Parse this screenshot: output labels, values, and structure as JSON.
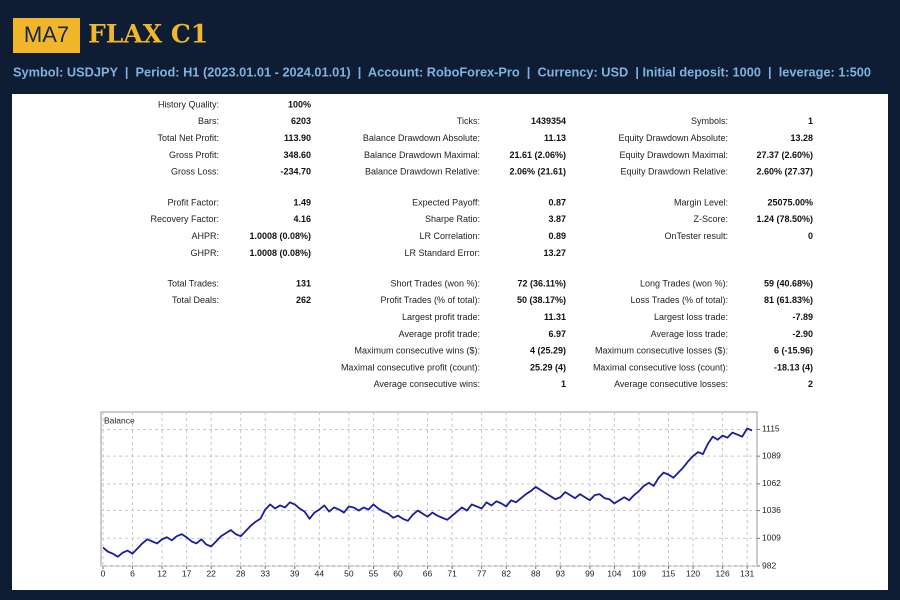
{
  "header": {
    "logo": "MA7",
    "title": "FLAX C1",
    "info": "Symbol: USDJPY  |  Period: H1 (2023.01.01 - 2024.01.01)  |  Account: RoboForex-Pro  |  Currency: USD  | Initial deposit: 1000  |  leverage: 1:500"
  },
  "report": {
    "groups": [
      [
        [
          {
            "label": "History Quality:",
            "value": "100%"
          },
          null,
          null
        ],
        [
          {
            "label": "Bars:",
            "value": "6203"
          },
          {
            "label": "Ticks:",
            "value": "1439354"
          },
          {
            "label": "Symbols:",
            "value": "1"
          }
        ],
        [
          {
            "label": "Total Net Profit:",
            "value": "113.90"
          },
          {
            "label": "Balance Drawdown Absolute:",
            "value": "11.13"
          },
          {
            "label": "Equity Drawdown Absolute:",
            "value": "13.28"
          }
        ],
        [
          {
            "label": "Gross Profit:",
            "value": "348.60"
          },
          {
            "label": "Balance Drawdown Maximal:",
            "value": "21.61 (2.06%)"
          },
          {
            "label": "Equity Drawdown Maximal:",
            "value": "27.37 (2.60%)"
          }
        ],
        [
          {
            "label": "Gross Loss:",
            "value": "-234.70"
          },
          {
            "label": "Balance Drawdown Relative:",
            "value": "2.06% (21.61)"
          },
          {
            "label": "Equity Drawdown Relative:",
            "value": "2.60% (27.37)"
          }
        ]
      ],
      [
        [
          {
            "label": "Profit Factor:",
            "value": "1.49"
          },
          {
            "label": "Expected Payoff:",
            "value": "0.87"
          },
          {
            "label": "Margin Level:",
            "value": "25075.00%"
          }
        ],
        [
          {
            "label": "Recovery Factor:",
            "value": "4.16"
          },
          {
            "label": "Sharpe Ratio:",
            "value": "3.87"
          },
          {
            "label": "Z-Score:",
            "value": "1.24 (78.50%)"
          }
        ],
        [
          {
            "label": "AHPR:",
            "value": "1.0008 (0.08%)"
          },
          {
            "label": "LR Correlation:",
            "value": "0.89"
          },
          {
            "label": "OnTester result:",
            "value": "0"
          }
        ],
        [
          {
            "label": "GHPR:",
            "value": "1.0008 (0.08%)"
          },
          {
            "label": "LR Standard Error:",
            "value": "13.27"
          },
          null
        ]
      ],
      [
        [
          {
            "label": "Total Trades:",
            "value": "131"
          },
          {
            "label": "Short Trades (won %):",
            "value": "72 (36.11%)"
          },
          {
            "label": "Long Trades (won %):",
            "value": "59 (40.68%)"
          }
        ],
        [
          {
            "label": "Total Deals:",
            "value": "262"
          },
          {
            "label": "Profit Trades (% of total):",
            "value": "50 (38.17%)"
          },
          {
            "label": "Loss Trades (% of total):",
            "value": "81 (61.83%)"
          }
        ],
        [
          null,
          {
            "label": "Largest profit trade:",
            "value": "11.31"
          },
          {
            "label": "Largest loss trade:",
            "value": "-7.89"
          }
        ],
        [
          null,
          {
            "label": "Average profit trade:",
            "value": "6.97"
          },
          {
            "label": "Average loss trade:",
            "value": "-2.90"
          }
        ],
        [
          null,
          {
            "label": "Maximum consecutive wins ($):",
            "value": "4 (25.29)"
          },
          {
            "label": "Maximum consecutive losses ($):",
            "value": "6 (-15.96)"
          }
        ],
        [
          null,
          {
            "label": "Maximal consecutive profit (count):",
            "value": "25.29 (4)"
          },
          {
            "label": "Maximal consecutive loss (count):",
            "value": "-18.13 (4)"
          }
        ],
        [
          null,
          {
            "label": "Average consecutive wins:",
            "value": "1"
          },
          {
            "label": "Average consecutive losses:",
            "value": "2"
          }
        ]
      ]
    ]
  },
  "chart_data": {
    "type": "line",
    "title": "Balance",
    "color": "#1c1c9c",
    "grid": true,
    "xlim": [
      0,
      133
    ],
    "xticks": [
      0,
      6,
      12,
      17,
      22,
      28,
      33,
      39,
      44,
      50,
      55,
      60,
      66,
      71,
      77,
      82,
      88,
      93,
      99,
      104,
      109,
      115,
      120,
      126,
      131
    ],
    "ylim": [
      982,
      1132
    ],
    "yticks": [
      982,
      1009,
      1036,
      1062,
      1089,
      1115
    ],
    "values": [
      1000,
      996,
      994,
      991,
      995,
      997,
      994,
      999,
      1004,
      1008,
      1006,
      1004,
      1008,
      1010,
      1007,
      1011,
      1013,
      1010,
      1006,
      1004,
      1008,
      1003,
      1001,
      1006,
      1011,
      1014,
      1017,
      1013,
      1011,
      1016,
      1021,
      1025,
      1028,
      1037,
      1042,
      1038,
      1041,
      1039,
      1044,
      1042,
      1038,
      1035,
      1028,
      1034,
      1037,
      1041,
      1035,
      1039,
      1037,
      1034,
      1040,
      1039,
      1036,
      1039,
      1037,
      1042,
      1038,
      1035,
      1033,
      1029,
      1031,
      1028,
      1026,
      1032,
      1036,
      1033,
      1030,
      1034,
      1031,
      1029,
      1027,
      1031,
      1035,
      1039,
      1036,
      1042,
      1040,
      1038,
      1044,
      1041,
      1045,
      1043,
      1040,
      1046,
      1044,
      1048,
      1052,
      1055,
      1059,
      1056,
      1053,
      1050,
      1047,
      1049,
      1054,
      1051,
      1048,
      1052,
      1049,
      1046,
      1051,
      1052,
      1048,
      1047,
      1043,
      1046,
      1049,
      1046,
      1051,
      1055,
      1060,
      1063,
      1060,
      1068,
      1073,
      1071,
      1068,
      1073,
      1078,
      1084,
      1089,
      1093,
      1091,
      1101,
      1108,
      1105,
      1109,
      1107,
      1112,
      1110,
      1108,
      1116,
      1113.9
    ]
  }
}
